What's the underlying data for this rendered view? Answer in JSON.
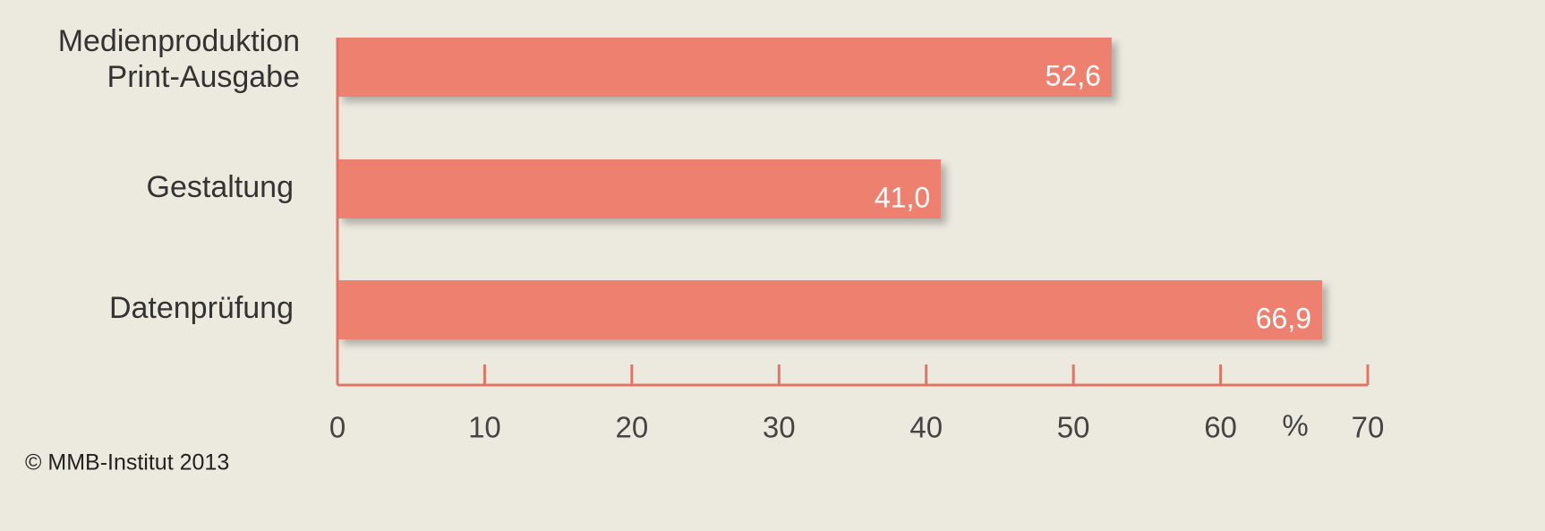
{
  "chart_data": {
    "type": "bar",
    "orientation": "horizontal",
    "categories": [
      "Medienproduktion Print-Ausgabe",
      "Gestaltung",
      "Datenprüfung"
    ],
    "values": [
      52.6,
      41.0,
      66.9
    ],
    "value_labels": [
      "52,6",
      "41,0",
      "66,9"
    ],
    "color": "#ee8070",
    "xlim": [
      0,
      70
    ],
    "xticks": [
      0,
      10,
      20,
      30,
      40,
      50,
      60,
      70
    ],
    "unit_label": "%",
    "source": "© MMB-Institut 2013"
  }
}
